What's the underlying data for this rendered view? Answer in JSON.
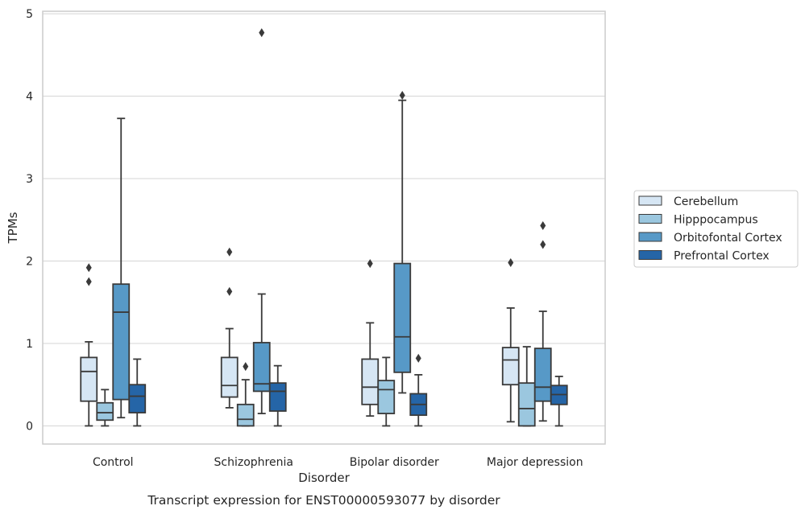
{
  "chart_data": {
    "type": "boxplot",
    "caption": "Transcript expression for ENST00000593077 by disorder",
    "xlabel": "Disorder",
    "ylabel": "TPMs",
    "ylim": [
      -0.22,
      5.03
    ],
    "yticks": [
      0,
      1,
      2,
      3,
      4,
      5
    ],
    "grid": "horizontal",
    "legend_position": "right",
    "categories": [
      "Control",
      "Schizophrenia",
      "Bipolar disorder",
      "Major depression"
    ],
    "series": [
      {
        "name": "Cerebellum",
        "color": "#d6e6f4",
        "boxes": [
          {
            "whisker_low": 0.0,
            "q1": 0.3,
            "median": 0.66,
            "q3": 0.83,
            "whisker_high": 1.02,
            "outliers": [
              1.75,
              1.92
            ]
          },
          {
            "whisker_low": 0.22,
            "q1": 0.35,
            "median": 0.49,
            "q3": 0.83,
            "whisker_high": 1.18,
            "outliers": [
              1.63,
              2.11
            ]
          },
          {
            "whisker_low": 0.12,
            "q1": 0.26,
            "median": 0.47,
            "q3": 0.81,
            "whisker_high": 1.25,
            "outliers": [
              1.97
            ]
          },
          {
            "whisker_low": 0.05,
            "q1": 0.5,
            "median": 0.8,
            "q3": 0.95,
            "whisker_high": 1.43,
            "outliers": [
              1.98
            ]
          }
        ]
      },
      {
        "name": "Hipppocampus",
        "color": "#9bc7df",
        "boxes": [
          {
            "whisker_low": 0.0,
            "q1": 0.07,
            "median": 0.16,
            "q3": 0.28,
            "whisker_high": 0.44,
            "outliers": []
          },
          {
            "whisker_low": 0.0,
            "q1": 0.0,
            "median": 0.08,
            "q3": 0.26,
            "whisker_high": 0.56,
            "outliers": [
              0.72
            ]
          },
          {
            "whisker_low": 0.0,
            "q1": 0.15,
            "median": 0.44,
            "q3": 0.55,
            "whisker_high": 0.83,
            "outliers": []
          },
          {
            "whisker_low": 0.0,
            "q1": 0.0,
            "median": 0.21,
            "q3": 0.52,
            "whisker_high": 0.96,
            "outliers": []
          }
        ]
      },
      {
        "name": "Orbitofontal Cortex",
        "color": "#5799c7",
        "boxes": [
          {
            "whisker_low": 0.1,
            "q1": 0.32,
            "median": 1.38,
            "q3": 1.72,
            "whisker_high": 3.73,
            "outliers": []
          },
          {
            "whisker_low": 0.15,
            "q1": 0.42,
            "median": 0.51,
            "q3": 1.01,
            "whisker_high": 1.6,
            "outliers": [
              4.77
            ]
          },
          {
            "whisker_low": 0.4,
            "q1": 0.65,
            "median": 1.08,
            "q3": 1.97,
            "whisker_high": 3.95,
            "outliers": [
              4.01
            ]
          },
          {
            "whisker_low": 0.06,
            "q1": 0.3,
            "median": 0.47,
            "q3": 0.94,
            "whisker_high": 1.39,
            "outliers": [
              2.2,
              2.43
            ]
          }
        ]
      },
      {
        "name": "Prefrontal Cortex",
        "color": "#2565a7",
        "boxes": [
          {
            "whisker_low": 0.0,
            "q1": 0.16,
            "median": 0.36,
            "q3": 0.5,
            "whisker_high": 0.81,
            "outliers": []
          },
          {
            "whisker_low": 0.0,
            "q1": 0.18,
            "median": 0.42,
            "q3": 0.52,
            "whisker_high": 0.73,
            "outliers": []
          },
          {
            "whisker_low": 0.0,
            "q1": 0.13,
            "median": 0.26,
            "q3": 0.39,
            "whisker_high": 0.62,
            "outliers": [
              0.82
            ]
          },
          {
            "whisker_low": 0.0,
            "q1": 0.26,
            "median": 0.38,
            "q3": 0.49,
            "whisker_high": 0.6,
            "outliers": []
          }
        ]
      }
    ]
  }
}
